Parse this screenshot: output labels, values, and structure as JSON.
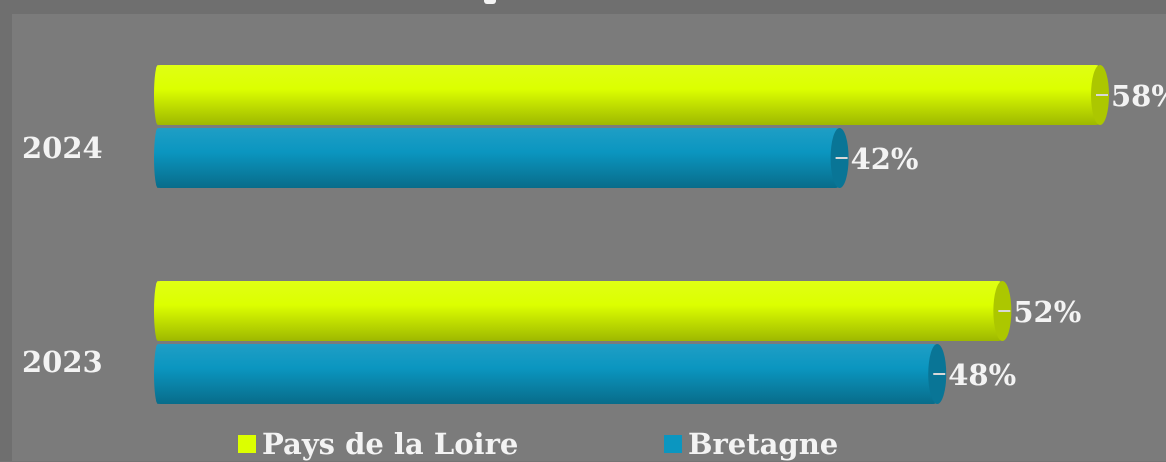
{
  "chart_data": {
    "type": "bar",
    "orientation": "horizontal",
    "style": "3d-cylinder",
    "categories": [
      "2024",
      "2023"
    ],
    "series": [
      {
        "name": "Pays de la Loire",
        "color": "#dcff00",
        "values": [
          58,
          52
        ],
        "labels": [
          "58%",
          "52%"
        ]
      },
      {
        "name": "Bretagne",
        "color": "#0b96c0",
        "values": [
          42,
          48
        ],
        "labels": [
          "42%",
          "48%"
        ]
      }
    ],
    "value_unit": "%",
    "xlim": [
      0,
      58
    ],
    "grid": false,
    "legend_position": "bottom"
  },
  "colors": {
    "background": "#7b7b7b",
    "label_text": "#f3f3f3"
  }
}
